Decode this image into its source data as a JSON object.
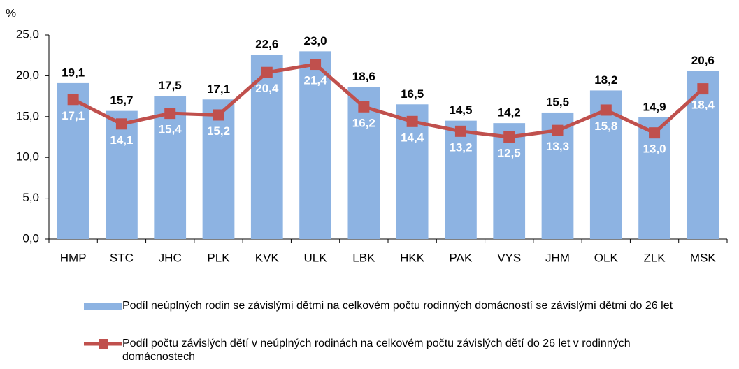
{
  "chart_data": {
    "type": "combo",
    "y_label": "%",
    "categories": [
      "HMP",
      "STC",
      "JHC",
      "PLK",
      "KVK",
      "ULK",
      "LBK",
      "HKK",
      "PAK",
      "VYS",
      "JHM",
      "OLK",
      "ZLK",
      "MSK"
    ],
    "series": [
      {
        "name": "Podíl neúplných rodin se závislými dětmi na celkovém počtu rodinných domácností se závislými dětmi do 26 let",
        "type": "bar",
        "color": "#8db3e2",
        "values": [
          19.1,
          15.7,
          17.5,
          17.1,
          22.6,
          23.0,
          18.6,
          16.5,
          14.5,
          14.2,
          15.5,
          18.2,
          14.9,
          20.6
        ],
        "value_labels": [
          "19,1",
          "15,7",
          "17,5",
          "17,1",
          "22,6",
          "23,0",
          "18,6",
          "16,5",
          "14,5",
          "14,2",
          "15,5",
          "18,2",
          "14,9",
          "20,6"
        ]
      },
      {
        "name": "Podíl počtu závislých dětí v neúplných rodinách na celkovém počtu závislých dětí do 26 let v rodinných domácnostech",
        "type": "line",
        "color": "#c0504d",
        "values": [
          17.1,
          14.1,
          15.4,
          15.2,
          20.4,
          21.4,
          16.2,
          14.4,
          13.2,
          12.5,
          13.3,
          15.8,
          13.0,
          18.4
        ],
        "value_labels": [
          "17,1",
          "14,1",
          "15,4",
          "15,2",
          "20,4",
          "21,4",
          "16,2",
          "14,4",
          "13,2",
          "12,5",
          "13,3",
          "15,8",
          "13,0",
          "18,4"
        ]
      }
    ],
    "ylim": [
      0,
      25
    ],
    "yticks": [
      {
        "value": 0,
        "label": "0,0"
      },
      {
        "value": 5,
        "label": "5,0"
      },
      {
        "value": 10,
        "label": "10,0"
      },
      {
        "value": 15,
        "label": "15,0"
      },
      {
        "value": 20,
        "label": "20,0"
      },
      {
        "value": 25,
        "label": "25,0"
      }
    ],
    "grid": false,
    "legend": "bottom"
  }
}
